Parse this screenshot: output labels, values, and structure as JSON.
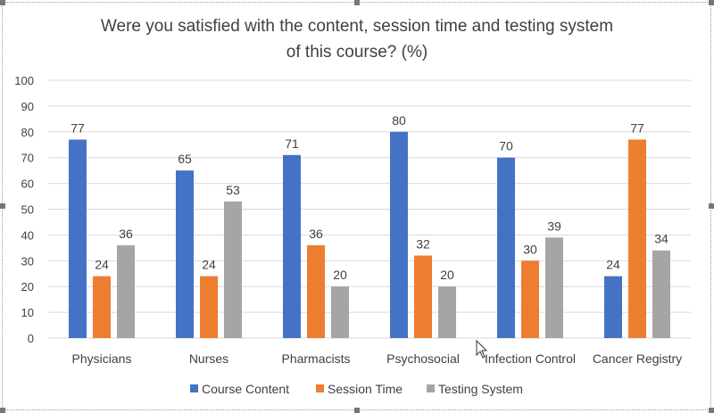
{
  "chart_data": {
    "type": "bar",
    "title": "Were you satisfied with the content, session time and testing system",
    "title_line2": "of this course? (%)",
    "xlabel": "",
    "ylabel": "",
    "ylim": [
      0,
      100
    ],
    "yticks": [
      0,
      10,
      20,
      30,
      40,
      50,
      60,
      70,
      80,
      90,
      100
    ],
    "grid": true,
    "legend_position": "bottom",
    "categories": [
      "Physicians",
      "Nurses",
      "Pharmacists",
      "Psychosocial",
      "Infection Control",
      "Cancer Registry"
    ],
    "series": [
      {
        "name": "Course Content",
        "color": "#4472C4",
        "values": [
          77,
          65,
          71,
          80,
          70,
          24
        ]
      },
      {
        "name": "Session Time",
        "color": "#ED7D31",
        "values": [
          24,
          24,
          36,
          32,
          30,
          77
        ]
      },
      {
        "name": "Testing System",
        "color": "#A5A5A5",
        "values": [
          36,
          53,
          20,
          20,
          39,
          34
        ]
      }
    ]
  }
}
